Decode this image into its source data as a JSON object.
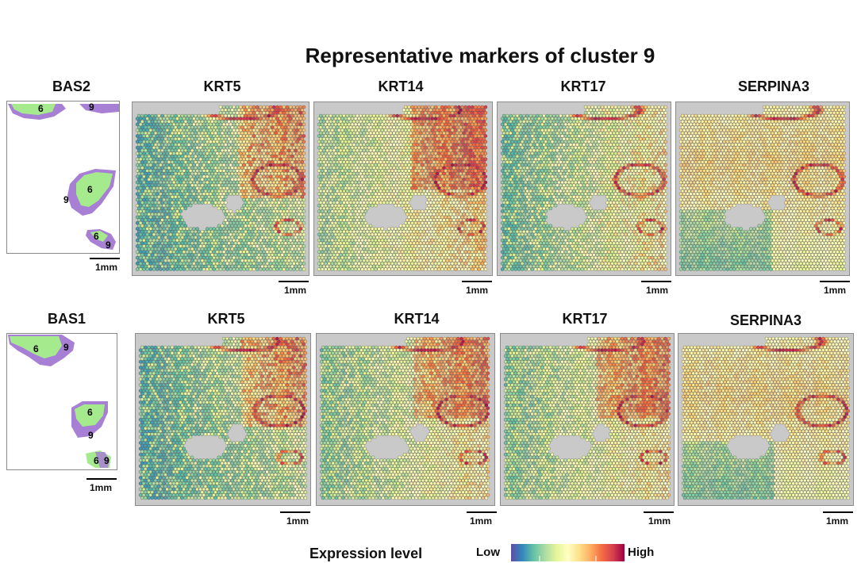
{
  "title": "Representative markers of cluster 9",
  "rows": [
    {
      "cluster_label": "BAS2",
      "cluster_numbers": [
        "6",
        "9",
        "6",
        "9",
        "6",
        "9"
      ],
      "genes": [
        "KRT5",
        "KRT14",
        "KRT17",
        "SERPINA3"
      ]
    },
    {
      "cluster_label": "BAS1",
      "cluster_numbers": [
        "6",
        "9",
        "6",
        "9",
        "6",
        "9"
      ],
      "genes": [
        "KRT5",
        "KRT14",
        "KRT17",
        "SERPINA3"
      ]
    }
  ],
  "scale_label": "1mm",
  "legend": {
    "title": "Expression level",
    "low": "Low",
    "high": "High",
    "colors": [
      "#5e4fa2",
      "#3288bd",
      "#66c2a5",
      "#abdda4",
      "#e6f598",
      "#ffffbf",
      "#fee08b",
      "#fdae61",
      "#f46d43",
      "#d53e4f",
      "#9e0142"
    ]
  },
  "colors": {
    "cluster_6": "#a6ea8e",
    "cluster_9": "#a77fd4",
    "high_ring": "#c0392b",
    "low_expression": "#3f3b8f"
  }
}
